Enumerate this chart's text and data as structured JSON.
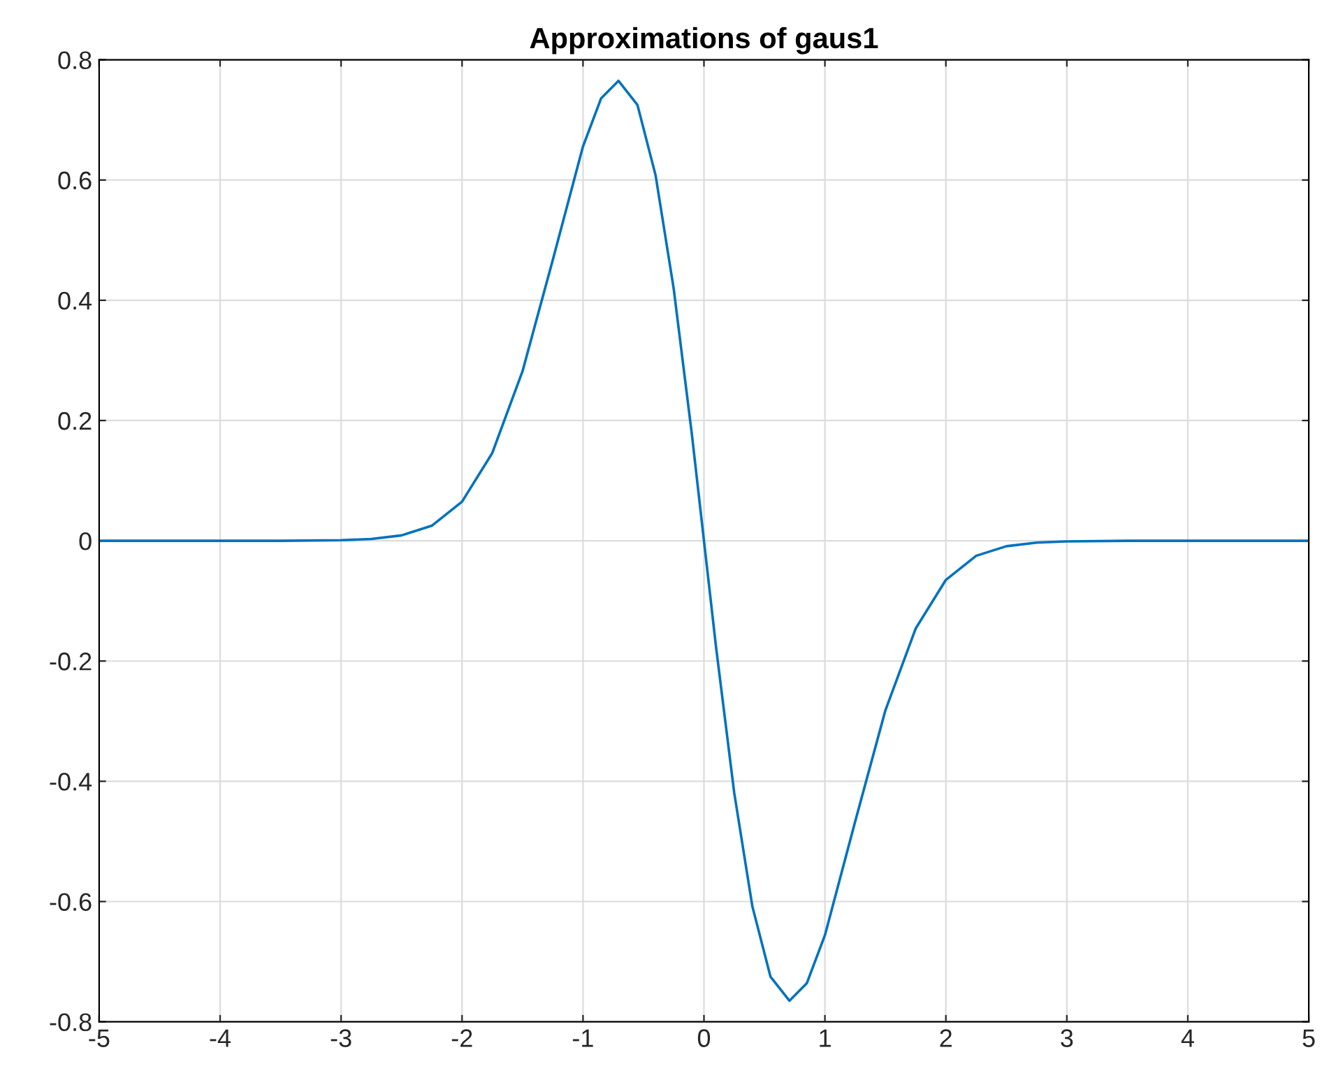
{
  "chart_data": {
    "type": "line",
    "title": "Approximations of gaus1",
    "x": [
      -5,
      -4,
      -3.5,
      -3,
      -2.75,
      -2.5,
      -2.25,
      -2,
      -1.75,
      -1.5,
      -1.25,
      -1,
      -0.85,
      -0.707,
      -0.55,
      -0.4,
      -0.25,
      -0.1,
      0,
      0.1,
      0.25,
      0.4,
      0.55,
      0.707,
      0.85,
      1,
      1.25,
      1.5,
      1.75,
      2,
      2.25,
      2.5,
      2.75,
      3,
      3.5,
      4,
      5
    ],
    "series": [
      {
        "color": "#0072bd",
        "values": [
          0,
          0,
          0,
          0.001,
          0.003,
          0.009,
          0.025,
          0.065,
          0.146,
          0.282,
          0.467,
          0.656,
          0.736,
          0.765,
          0.725,
          0.608,
          0.419,
          0.177,
          0,
          -0.177,
          -0.419,
          -0.608,
          -0.725,
          -0.765,
          -0.736,
          -0.656,
          -0.467,
          -0.282,
          -0.146,
          -0.065,
          -0.025,
          -0.009,
          -0.003,
          -0.001,
          0,
          0,
          0
        ]
      }
    ],
    "xlim": [
      -5,
      5
    ],
    "xticks": [
      -5,
      -4,
      -3,
      -2,
      -1,
      0,
      1,
      2,
      3,
      4,
      5
    ],
    "ylim": [
      -0.8,
      0.8
    ],
    "yticks": [
      -0.8,
      -0.6,
      -0.4,
      -0.2,
      0,
      0.2,
      0.4,
      0.6,
      0.8
    ],
    "grid": true
  }
}
